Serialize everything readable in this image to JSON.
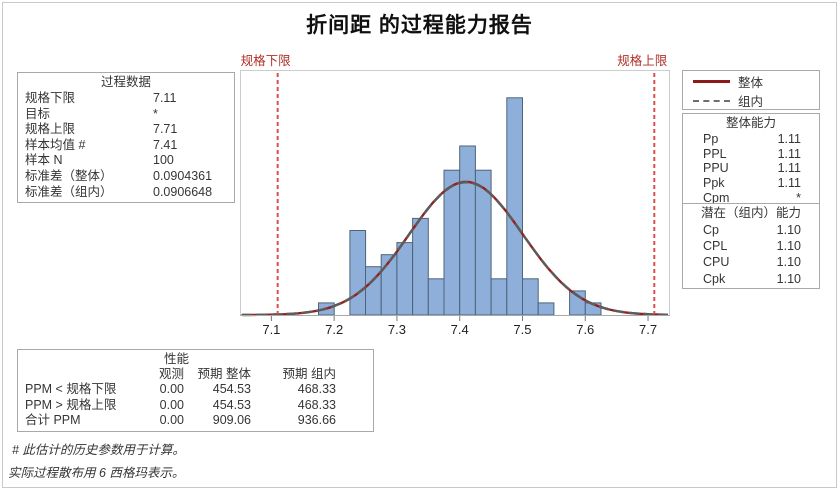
{
  "title": "折间距 的过程能力报告",
  "process_data": {
    "header": "过程数据",
    "rows": [
      {
        "label": "规格下限",
        "value": "7.11"
      },
      {
        "label": "目标",
        "value": "*"
      },
      {
        "label": "规格上限",
        "value": "7.71"
      },
      {
        "label": "样本均值 #",
        "value": "7.41"
      },
      {
        "label": "样本 N",
        "value": "100"
      },
      {
        "label": "标准差（整体）",
        "value": "0.0904361"
      },
      {
        "label": "标准差（组内）",
        "value": "0.0906648"
      }
    ]
  },
  "legend": {
    "overall_label": "整体",
    "within_label": "组内"
  },
  "overall_capability": {
    "header": "整体能力",
    "rows": [
      {
        "label": "Pp",
        "value": "1.11"
      },
      {
        "label": "PPL",
        "value": "1.11"
      },
      {
        "label": "PPU",
        "value": "1.11"
      },
      {
        "label": "Ppk",
        "value": "1.11"
      },
      {
        "label": "Cpm",
        "value": "*"
      }
    ]
  },
  "within_capability": {
    "header": "潜在（组内）能力",
    "rows": [
      {
        "label": "Cp",
        "value": "1.10"
      },
      {
        "label": "CPL",
        "value": "1.10"
      },
      {
        "label": "CPU",
        "value": "1.10"
      },
      {
        "label": "Cpk",
        "value": "1.10"
      }
    ]
  },
  "performance": {
    "header": "性能",
    "col_headers": [
      "观测",
      "预期 整体",
      "预期 组内"
    ],
    "rows": [
      {
        "label": "PPM < 规格下限",
        "values": [
          "0.00",
          "454.53",
          "468.33"
        ]
      },
      {
        "label": "PPM > 规格上限",
        "values": [
          "0.00",
          "454.53",
          "468.33"
        ]
      },
      {
        "label": "合计 PPM",
        "values": [
          "0.00",
          "909.06",
          "936.66"
        ]
      }
    ]
  },
  "footnotes": [
    "# 此估计的历史参数用于计算。",
    "实际过程散布用 6 西格玛表示。"
  ],
  "chart_data": {
    "type": "bar",
    "title": "",
    "xlabel": "",
    "ylabel": "",
    "n": 100,
    "bin_width": 0.025,
    "x_range": [
      7.05,
      7.735
    ],
    "y_max_count": 20.3,
    "x_ticks": [
      7.1,
      7.2,
      7.3,
      7.4,
      7.5,
      7.6,
      7.7
    ],
    "bins": [
      {
        "center": 7.1875,
        "count": 1
      },
      {
        "center": 7.2375,
        "count": 7
      },
      {
        "center": 7.2625,
        "count": 4
      },
      {
        "center": 7.2875,
        "count": 5
      },
      {
        "center": 7.3125,
        "count": 6
      },
      {
        "center": 7.3375,
        "count": 8
      },
      {
        "center": 7.3625,
        "count": 3
      },
      {
        "center": 7.3875,
        "count": 12
      },
      {
        "center": 7.4125,
        "count": 14
      },
      {
        "center": 7.4375,
        "count": 12
      },
      {
        "center": 7.4625,
        "count": 3
      },
      {
        "center": 7.4875,
        "count": 18
      },
      {
        "center": 7.5125,
        "count": 3
      },
      {
        "center": 7.5375,
        "count": 1
      },
      {
        "center": 7.5875,
        "count": 2
      },
      {
        "center": 7.6125,
        "count": 1
      }
    ],
    "lsl": {
      "label": "规格下限",
      "value": 7.11
    },
    "usl": {
      "label": "规格上限",
      "value": 7.71
    },
    "curves": [
      {
        "name": "整体",
        "mean": 7.41,
        "sd": 0.0904361,
        "style": "solid"
      },
      {
        "name": "组内",
        "mean": 7.41,
        "sd": 0.0906648,
        "style": "dashed"
      }
    ],
    "legend_position": "right",
    "grid": false
  },
  "colors": {
    "bar_fill": "#8dafd9",
    "bar_stroke": "#4e6379",
    "overall_curve": "#9c1c1c",
    "within_curve": "#5c5c5c",
    "spec_line": "#dd4f4f",
    "spec_label": "#b03028",
    "plot_border": "#cccccc",
    "axis_line": "#a9a9a9"
  }
}
